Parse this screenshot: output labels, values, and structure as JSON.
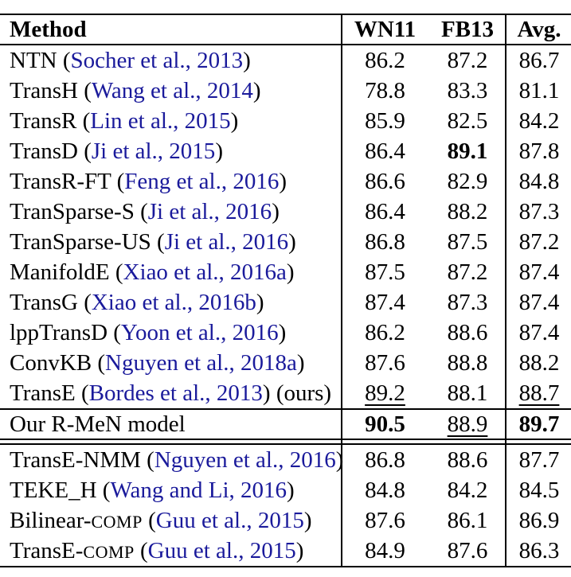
{
  "page": {
    "background": "#ffffff",
    "text_color": "#000000",
    "cite_color": "#1a1a9b",
    "rule_color": "#000000"
  },
  "table": {
    "columns": {
      "method": "Method",
      "wn11": "WN11",
      "fb13": "FB13",
      "avg": "Avg."
    },
    "value_style_legend": {
      "n": "normal",
      "b": "bold",
      "u": "underlined"
    },
    "sections": {
      "baselines": {
        "rows": [
          {
            "method": [
              {
                "t": "NTN ("
              },
              {
                "t": "Socher et al., 2013",
                "s": "cite"
              },
              {
                "t": ")"
              }
            ],
            "values": [
              {
                "v": "86.2",
                "s": "n"
              },
              {
                "v": "87.2",
                "s": "n"
              },
              {
                "v": "86.7",
                "s": "n"
              }
            ]
          },
          {
            "method": [
              {
                "t": "TransH ("
              },
              {
                "t": "Wang et al., 2014",
                "s": "cite"
              },
              {
                "t": ")"
              }
            ],
            "values": [
              {
                "v": "78.8",
                "s": "n"
              },
              {
                "v": "83.3",
                "s": "n"
              },
              {
                "v": "81.1",
                "s": "n"
              }
            ]
          },
          {
            "method": [
              {
                "t": "TransR ("
              },
              {
                "t": "Lin et al., 2015",
                "s": "cite"
              },
              {
                "t": ")"
              }
            ],
            "values": [
              {
                "v": "85.9",
                "s": "n"
              },
              {
                "v": "82.5",
                "s": "n"
              },
              {
                "v": "84.2",
                "s": "n"
              }
            ]
          },
          {
            "method": [
              {
                "t": "TransD ("
              },
              {
                "t": "Ji et al., 2015",
                "s": "cite"
              },
              {
                "t": ")"
              }
            ],
            "values": [
              {
                "v": "86.4",
                "s": "n"
              },
              {
                "v": "89.1",
                "s": "b"
              },
              {
                "v": "87.8",
                "s": "n"
              }
            ]
          },
          {
            "method": [
              {
                "t": "TransR-FT ("
              },
              {
                "t": "Feng et al., 2016",
                "s": "cite"
              },
              {
                "t": ")"
              }
            ],
            "values": [
              {
                "v": "86.6",
                "s": "n"
              },
              {
                "v": "82.9",
                "s": "n"
              },
              {
                "v": "84.8",
                "s": "n"
              }
            ]
          },
          {
            "method": [
              {
                "t": "TranSparse-S ("
              },
              {
                "t": "Ji et al., 2016",
                "s": "cite"
              },
              {
                "t": ")"
              }
            ],
            "values": [
              {
                "v": "86.4",
                "s": "n"
              },
              {
                "v": "88.2",
                "s": "n"
              },
              {
                "v": "87.3",
                "s": "n"
              }
            ]
          },
          {
            "method": [
              {
                "t": "TranSparse-US ("
              },
              {
                "t": "Ji et al., 2016",
                "s": "cite"
              },
              {
                "t": ")"
              }
            ],
            "values": [
              {
                "v": "86.8",
                "s": "n"
              },
              {
                "v": "87.5",
                "s": "n"
              },
              {
                "v": "87.2",
                "s": "n"
              }
            ]
          },
          {
            "method": [
              {
                "t": "ManifoldE ("
              },
              {
                "t": "Xiao et al., 2016a",
                "s": "cite"
              },
              {
                "t": ")"
              }
            ],
            "values": [
              {
                "v": "87.5",
                "s": "n"
              },
              {
                "v": "87.2",
                "s": "n"
              },
              {
                "v": "87.4",
                "s": "n"
              }
            ]
          },
          {
            "method": [
              {
                "t": "TransG ("
              },
              {
                "t": "Xiao et al., 2016b",
                "s": "cite"
              },
              {
                "t": ")"
              }
            ],
            "values": [
              {
                "v": "87.4",
                "s": "n"
              },
              {
                "v": "87.3",
                "s": "n"
              },
              {
                "v": "87.4",
                "s": "n"
              }
            ]
          },
          {
            "method": [
              {
                "t": "lppTransD ("
              },
              {
                "t": "Yoon et al., 2016",
                "s": "cite"
              },
              {
                "t": ")"
              }
            ],
            "values": [
              {
                "v": "86.2",
                "s": "n"
              },
              {
                "v": "88.6",
                "s": "n"
              },
              {
                "v": "87.4",
                "s": "n"
              }
            ]
          },
          {
            "method": [
              {
                "t": "ConvKB ("
              },
              {
                "t": "Nguyen et al., 2018a",
                "s": "cite"
              },
              {
                "t": ")"
              }
            ],
            "values": [
              {
                "v": "87.6",
                "s": "n"
              },
              {
                "v": "88.8",
                "s": "n"
              },
              {
                "v": "88.2",
                "s": "n"
              }
            ]
          },
          {
            "method": [
              {
                "t": "TransE ("
              },
              {
                "t": "Bordes et al., 2013",
                "s": "cite"
              },
              {
                "t": ") (ours)"
              }
            ],
            "values": [
              {
                "v": "89.2",
                "s": "u"
              },
              {
                "v": "88.1",
                "s": "n"
              },
              {
                "v": "88.7",
                "s": "u"
              }
            ]
          }
        ]
      },
      "ours": {
        "rows": [
          {
            "method": [
              {
                "t": "Our R-MeN model"
              }
            ],
            "values": [
              {
                "v": "90.5",
                "s": "b"
              },
              {
                "v": "88.9",
                "s": "u"
              },
              {
                "v": "89.7",
                "s": "b"
              }
            ]
          }
        ]
      },
      "related": {
        "rows": [
          {
            "method": [
              {
                "t": "TransE-NMM ("
              },
              {
                "t": "Nguyen et al., 2016",
                "s": "cite"
              },
              {
                "t": ")"
              }
            ],
            "values": [
              {
                "v": "86.8",
                "s": "n"
              },
              {
                "v": "88.6",
                "s": "n"
              },
              {
                "v": "87.7",
                "s": "n"
              }
            ]
          },
          {
            "method": [
              {
                "t": "TEKE_H ("
              },
              {
                "t": "Wang and Li, 2016",
                "s": "cite"
              },
              {
                "t": ")"
              }
            ],
            "values": [
              {
                "v": "84.8",
                "s": "n"
              },
              {
                "v": "84.2",
                "s": "n"
              },
              {
                "v": "84.5",
                "s": "n"
              }
            ]
          },
          {
            "method": [
              {
                "t": "Bilinear-"
              },
              {
                "t": "COMP",
                "s": "sc"
              },
              {
                "t": " ("
              },
              {
                "t": "Guu et al., 2015",
                "s": "cite"
              },
              {
                "t": ")"
              }
            ],
            "values": [
              {
                "v": "87.6",
                "s": "n"
              },
              {
                "v": "86.1",
                "s": "n"
              },
              {
                "v": "86.9",
                "s": "n"
              }
            ]
          },
          {
            "method": [
              {
                "t": "TransE-"
              },
              {
                "t": "COMP",
                "s": "sc"
              },
              {
                "t": " ("
              },
              {
                "t": "Guu et al., 2015",
                "s": "cite"
              },
              {
                "t": ")"
              }
            ],
            "values": [
              {
                "v": "84.9",
                "s": "n"
              },
              {
                "v": "87.6",
                "s": "n"
              },
              {
                "v": "86.3",
                "s": "n"
              }
            ]
          }
        ]
      }
    }
  }
}
